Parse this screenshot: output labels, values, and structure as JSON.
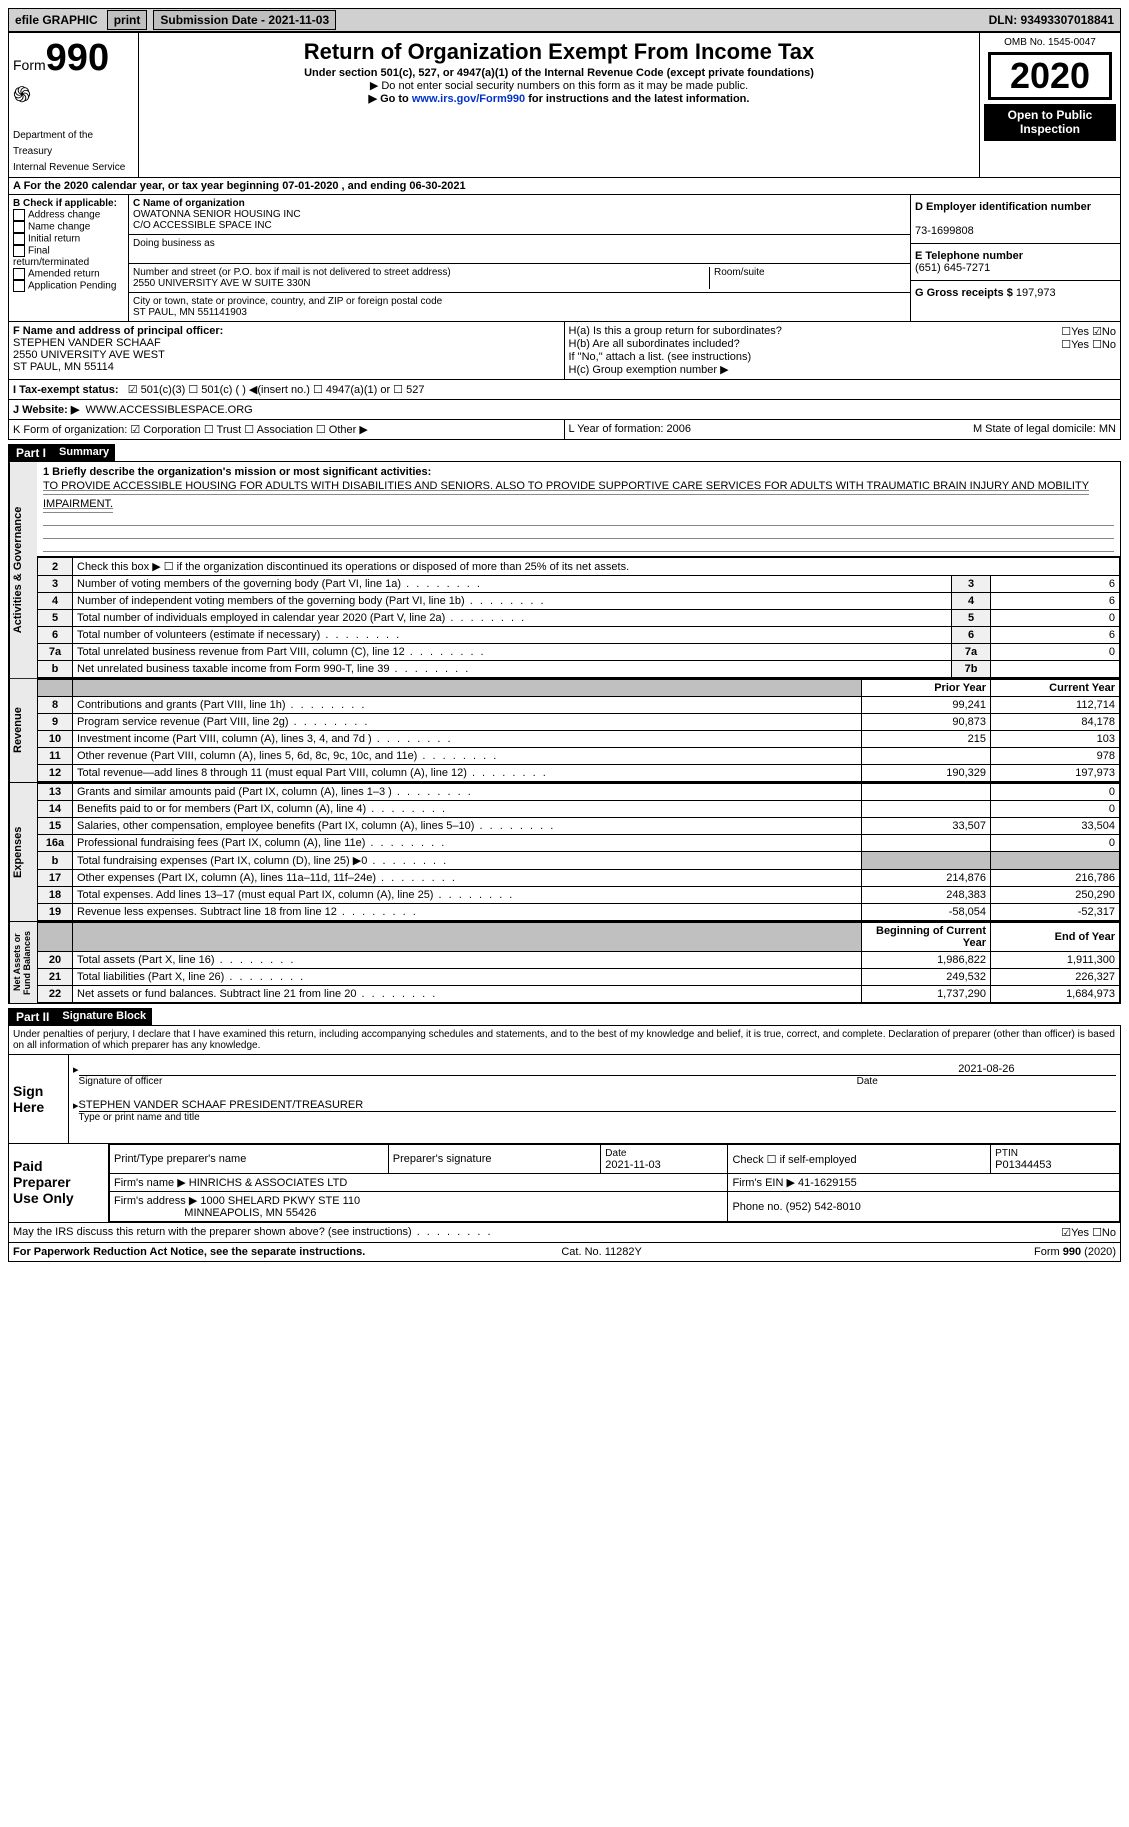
{
  "topbar": {
    "efile": "efile GRAPHIC",
    "print": "print",
    "sub_label": "Submission Date - ",
    "sub_date": "2021-11-03",
    "dln": "DLN: 93493307018841"
  },
  "header": {
    "form_prefix": "Form",
    "form_no": "990",
    "dept": "Department of the Treasury\nInternal Revenue Service",
    "title": "Return of Organization Exempt From Income Tax",
    "sub": "Under section 501(c), 527, or 4947(a)(1) of the Internal Revenue Code (except private foundations)",
    "note1": "▶ Do not enter social security numbers on this form as it may be made public.",
    "note2_pre": "▶ Go to ",
    "note2_link": "www.irs.gov/Form990",
    "note2_post": " for instructions and the latest information.",
    "omb": "OMB No. 1545-0047",
    "year": "2020",
    "inspect": "Open to Public\nInspection"
  },
  "line_a": "A For the 2020 calendar year, or tax year beginning 07-01-2020   , and ending 06-30-2021",
  "box_b": {
    "title": "B Check if applicable:",
    "items": [
      "Address change",
      "Name change",
      "Initial return",
      "Final return/terminated",
      "Amended return",
      "Application Pending"
    ]
  },
  "box_c": {
    "name_lbl": "C Name of organization",
    "name1": "OWATONNA SENIOR HOUSING INC",
    "name2": "C/O ACCESSIBLE SPACE INC",
    "dba_lbl": "Doing business as",
    "street_lbl": "Number and street (or P.O. box if mail is not delivered to street address)",
    "suite_lbl": "Room/suite",
    "street": "2550 UNIVERSITY AVE W SUITE 330N",
    "city_lbl": "City or town, state or province, country, and ZIP or foreign postal code",
    "city": "ST PAUL, MN  551141903"
  },
  "box_d": {
    "lbl": "D Employer identification number",
    "val": "73-1699808"
  },
  "box_e": {
    "lbl": "E Telephone number",
    "val": "(651) 645-7271"
  },
  "box_g": {
    "lbl": "G Gross receipts $",
    "val": "197,973"
  },
  "box_f": {
    "lbl": "F Name and address of principal officer:",
    "name": "STEPHEN VANDER SCHAAF",
    "addr1": "2550 UNIVERSITY AVE WEST",
    "addr2": "ST PAUL, MN  55114"
  },
  "box_h": {
    "a": "H(a)  Is this a group return for subordinates?",
    "b": "H(b)  Are all subordinates included?",
    "b_note": "If \"No,\" attach a list. (see instructions)",
    "c": "H(c)  Group exemption number ▶",
    "yn": "☐Yes ☑No",
    "yn2": "☐Yes ☐No"
  },
  "line_i": {
    "pre": "I    Tax-exempt status:",
    "opts": "☑ 501(c)(3)   ☐ 501(c) (  ) ◀(insert no.)   ☐ 4947(a)(1) or   ☐ 527"
  },
  "line_j": {
    "pre": "J    Website: ▶",
    "val": "WWW.ACCESSIBLESPACE.ORG"
  },
  "line_k": "K Form of organization:  ☑ Corporation  ☐ Trust  ☐ Association  ☐ Other ▶",
  "line_lm": {
    "l": "L Year of formation: 2006",
    "m": "M State of legal domicile: MN"
  },
  "part1": {
    "hdr": "Part I",
    "title": "Summary"
  },
  "mission": {
    "q1": "1  Briefly describe the organization's mission or most significant activities:",
    "text": "TO PROVIDE ACCESSIBLE HOUSING FOR ADULTS WITH DISABILITIES AND SENIORS. ALSO TO PROVIDE SUPPORTIVE CARE SERVICES FOR ADULTS WITH TRAUMATIC BRAIN INJURY AND MOBILITY IMPAIRMENT."
  },
  "gov_rows": [
    {
      "n": "2",
      "t": "Check this box ▶ ☐  if the organization discontinued its operations or disposed of more than 25% of its net assets.",
      "ln": "",
      "v": ""
    },
    {
      "n": "3",
      "t": "Number of voting members of the governing body (Part VI, line 1a)",
      "ln": "3",
      "v": "6"
    },
    {
      "n": "4",
      "t": "Number of independent voting members of the governing body (Part VI, line 1b)",
      "ln": "4",
      "v": "6"
    },
    {
      "n": "5",
      "t": "Total number of individuals employed in calendar year 2020 (Part V, line 2a)",
      "ln": "5",
      "v": "0"
    },
    {
      "n": "6",
      "t": "Total number of volunteers (estimate if necessary)",
      "ln": "6",
      "v": "6"
    },
    {
      "n": "7a",
      "t": "Total unrelated business revenue from Part VIII, column (C), line 12",
      "ln": "7a",
      "v": "0"
    },
    {
      "n": "b",
      "t": "Net unrelated business taxable income from Form 990-T, line 39",
      "ln": "7b",
      "v": ""
    }
  ],
  "rev_hdr": {
    "py": "Prior Year",
    "cy": "Current Year"
  },
  "rev_rows": [
    {
      "n": "8",
      "t": "Contributions and grants (Part VIII, line 1h)",
      "py": "99,241",
      "cy": "112,714"
    },
    {
      "n": "9",
      "t": "Program service revenue (Part VIII, line 2g)",
      "py": "90,873",
      "cy": "84,178"
    },
    {
      "n": "10",
      "t": "Investment income (Part VIII, column (A), lines 3, 4, and 7d )",
      "py": "215",
      "cy": "103"
    },
    {
      "n": "11",
      "t": "Other revenue (Part VIII, column (A), lines 5, 6d, 8c, 9c, 10c, and 11e)",
      "py": "",
      "cy": "978"
    },
    {
      "n": "12",
      "t": "Total revenue—add lines 8 through 11 (must equal Part VIII, column (A), line 12)",
      "py": "190,329",
      "cy": "197,973"
    }
  ],
  "exp_rows": [
    {
      "n": "13",
      "t": "Grants and similar amounts paid (Part IX, column (A), lines 1–3 )",
      "py": "",
      "cy": "0"
    },
    {
      "n": "14",
      "t": "Benefits paid to or for members (Part IX, column (A), line 4)",
      "py": "",
      "cy": "0"
    },
    {
      "n": "15",
      "t": "Salaries, other compensation, employee benefits (Part IX, column (A), lines 5–10)",
      "py": "33,507",
      "cy": "33,504"
    },
    {
      "n": "16a",
      "t": "Professional fundraising fees (Part IX, column (A), line 11e)",
      "py": "",
      "cy": "0"
    },
    {
      "n": "b",
      "t": "Total fundraising expenses (Part IX, column (D), line 25) ▶0",
      "py": "shade",
      "cy": "shade"
    },
    {
      "n": "17",
      "t": "Other expenses (Part IX, column (A), lines 11a–11d, 11f–24e)",
      "py": "214,876",
      "cy": "216,786"
    },
    {
      "n": "18",
      "t": "Total expenses. Add lines 13–17 (must equal Part IX, column (A), line 25)",
      "py": "248,383",
      "cy": "250,290"
    },
    {
      "n": "19",
      "t": "Revenue less expenses. Subtract line 18 from line 12",
      "py": "-58,054",
      "cy": "-52,317"
    }
  ],
  "na_hdr": {
    "py": "Beginning of Current Year",
    "cy": "End of Year"
  },
  "na_rows": [
    {
      "n": "20",
      "t": "Total assets (Part X, line 16)",
      "py": "1,986,822",
      "cy": "1,911,300"
    },
    {
      "n": "21",
      "t": "Total liabilities (Part X, line 26)",
      "py": "249,532",
      "cy": "226,327"
    },
    {
      "n": "22",
      "t": "Net assets or fund balances. Subtract line 21 from line 20",
      "py": "1,737,290",
      "cy": "1,684,973"
    }
  ],
  "vlabels": {
    "gov": "Activities & Governance",
    "rev": "Revenue",
    "exp": "Expenses",
    "na": "Net Assets or\nFund Balances"
  },
  "part2": {
    "hdr": "Part II",
    "title": "Signature Block"
  },
  "penalty": "Under penalties of perjury, I declare that I have examined this return, including accompanying schedules and statements, and to the best of my knowledge and belief, it is true, correct, and complete. Declaration of preparer (other than officer) is based on all information of which preparer has any knowledge.",
  "sign": {
    "here": "Sign\nHere",
    "sig_lbl": "Signature of officer",
    "date_lbl": "Date",
    "date": "2021-08-26",
    "name": "STEPHEN VANDER SCHAAF  PRESIDENT/TREASURER",
    "name_lbl": "Type or print name and title"
  },
  "preparer": {
    "label": "Paid\nPreparer\nUse Only",
    "c1": "Print/Type preparer's name",
    "c2": "Preparer's signature",
    "c3_lbl": "Date",
    "c3": "2021-11-03",
    "c4": "Check ☐ if self-employed",
    "c5_lbl": "PTIN",
    "c5": "P01344453",
    "firm_lbl": "Firm's name    ▶",
    "firm": "HINRICHS & ASSOCIATES LTD",
    "ein_lbl": "Firm's EIN ▶",
    "ein": "41-1629155",
    "addr_lbl": "Firm's address ▶",
    "addr1": "1000 SHELARD PKWY STE 110",
    "addr2": "MINNEAPOLIS, MN  55426",
    "phone_lbl": "Phone no.",
    "phone": "(952) 542-8010"
  },
  "may_irs": "May the IRS discuss this return with the preparer shown above? (see instructions)",
  "may_irs_yn": "☑Yes  ☐No",
  "footer": {
    "l": "For Paperwork Reduction Act Notice, see the separate instructions.",
    "m": "Cat. No. 11282Y",
    "r": "Form 990 (2020)"
  }
}
